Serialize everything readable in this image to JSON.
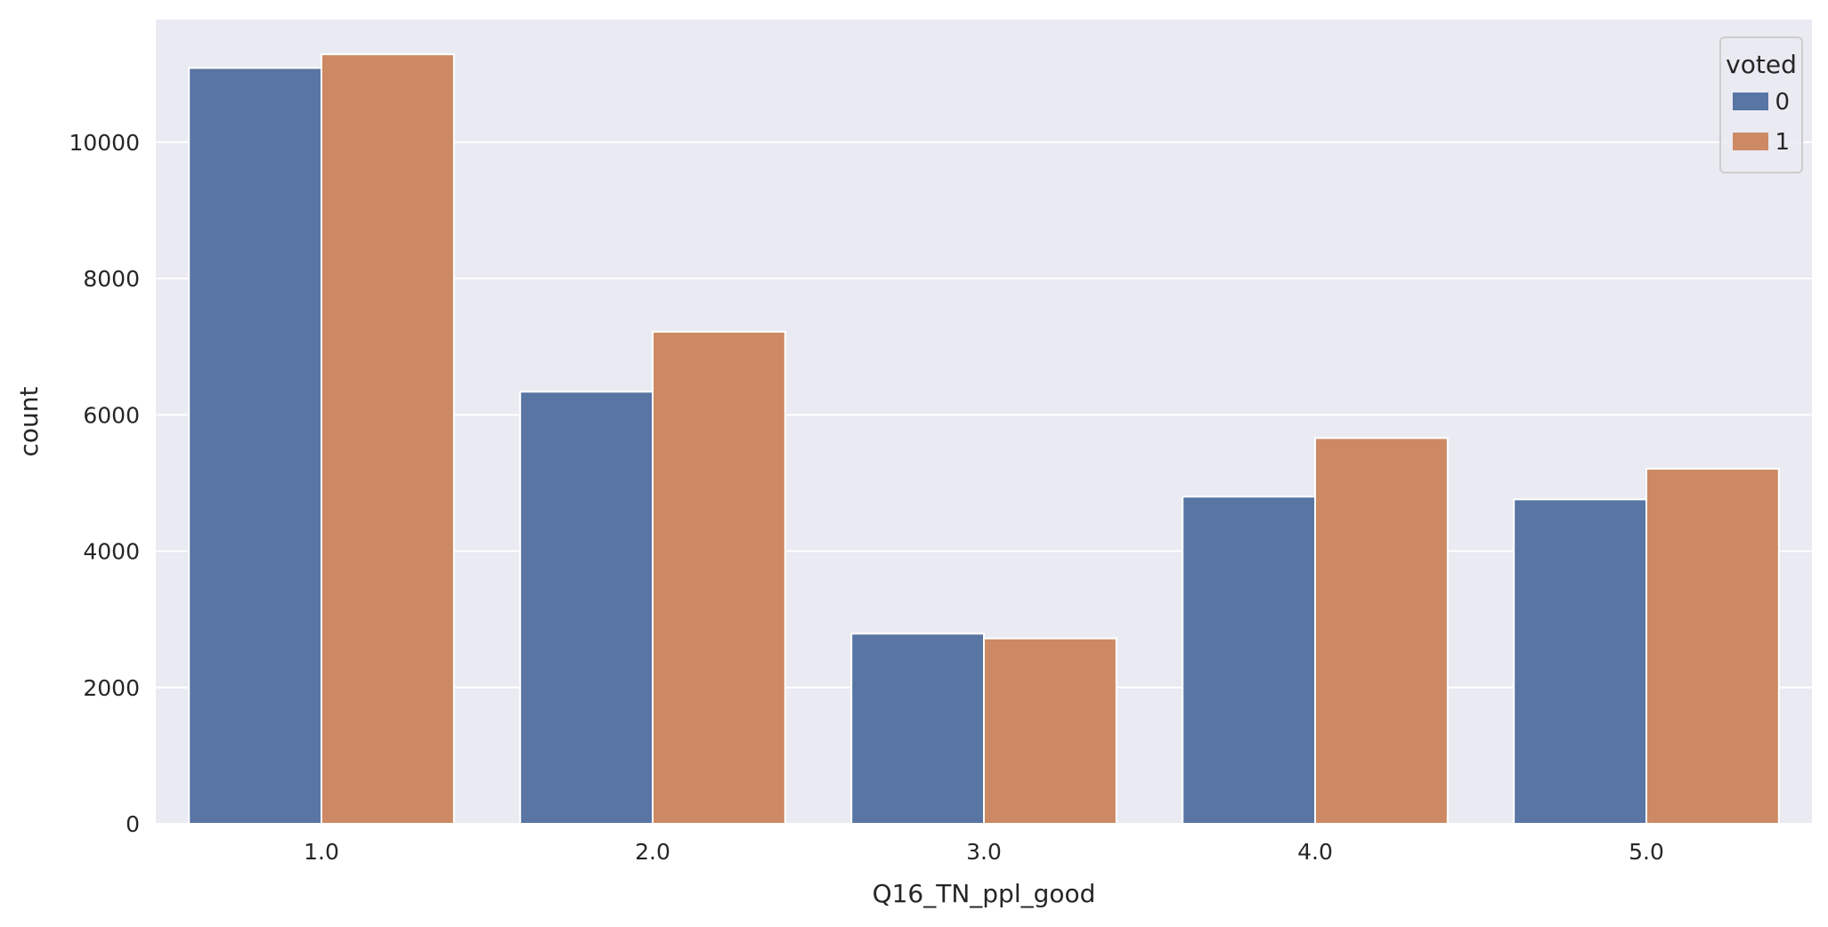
{
  "chart_data": {
    "type": "bar",
    "xlabel": "Q16_TN_ppl_good",
    "ylabel": "count",
    "categories": [
      "1.0",
      "2.0",
      "3.0",
      "4.0",
      "5.0"
    ],
    "series": [
      {
        "name": "0",
        "color": "#5875a4",
        "values": [
          11090,
          6340,
          2790,
          4800,
          4760
        ]
      },
      {
        "name": "1",
        "color": "#cc8963",
        "values": [
          11290,
          7220,
          2720,
          5660,
          5210
        ]
      }
    ],
    "ylim": [
      0,
      11800
    ],
    "yticks": [
      0,
      2000,
      4000,
      6000,
      8000,
      10000
    ],
    "grid": true,
    "legend": {
      "title": "voted",
      "position": "top-right"
    },
    "colors": {
      "plot_background": "#eaeaf2",
      "grid": "#ffffff",
      "text": "#262626"
    }
  }
}
